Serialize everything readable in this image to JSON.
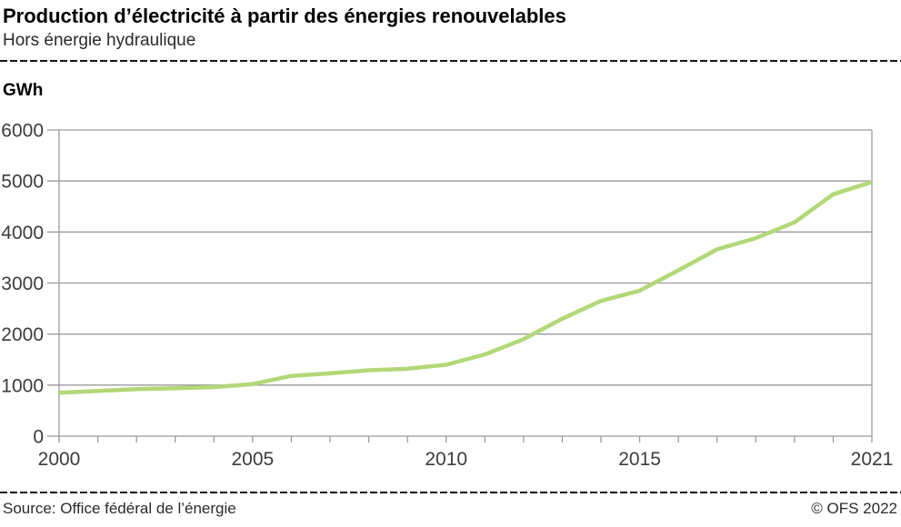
{
  "header": {
    "title": "Production d’électricité à partir des énergies renouvelables",
    "subtitle": "Hors énergie hydraulique"
  },
  "y_axis": {
    "unit_label": "GWh"
  },
  "footer": {
    "source": "Source: Office fédéral de l’énergie",
    "copyright": "© OFS 2022"
  },
  "chart_data": {
    "type": "line",
    "title": "Production d’électricité à partir des énergies renouvelables",
    "subtitle": "Hors énergie hydraulique",
    "ylabel": "GWh",
    "xlabel": "",
    "x": [
      2000,
      2001,
      2002,
      2003,
      2004,
      2005,
      2006,
      2007,
      2008,
      2009,
      2010,
      2011,
      2012,
      2013,
      2014,
      2015,
      2016,
      2017,
      2018,
      2019,
      2020,
      2021
    ],
    "values": [
      850,
      885,
      920,
      940,
      960,
      1020,
      1180,
      1230,
      1290,
      1320,
      1400,
      1600,
      1900,
      2300,
      2650,
      2850,
      3250,
      3660,
      3880,
      4190,
      4740,
      4980
    ],
    "ylim": [
      0,
      6000
    ],
    "y_ticks": [
      0,
      1000,
      2000,
      3000,
      4000,
      5000,
      6000
    ],
    "x_tick_years": [
      2000,
      2001,
      2002,
      2003,
      2004,
      2005,
      2006,
      2007,
      2008,
      2009,
      2010,
      2011,
      2012,
      2013,
      2014,
      2015,
      2016,
      2017,
      2018,
      2019,
      2020,
      2021
    ],
    "x_tick_labels": [
      "2000",
      "2005",
      "2010",
      "2015",
      "2021"
    ],
    "x_tick_label_years": [
      2000,
      2005,
      2010,
      2015,
      2021
    ],
    "grid": true,
    "legend": "none",
    "line_color": "#b2d877",
    "grid_color": "#9b9b9b",
    "tick_text_color": "#3c3c3c"
  }
}
